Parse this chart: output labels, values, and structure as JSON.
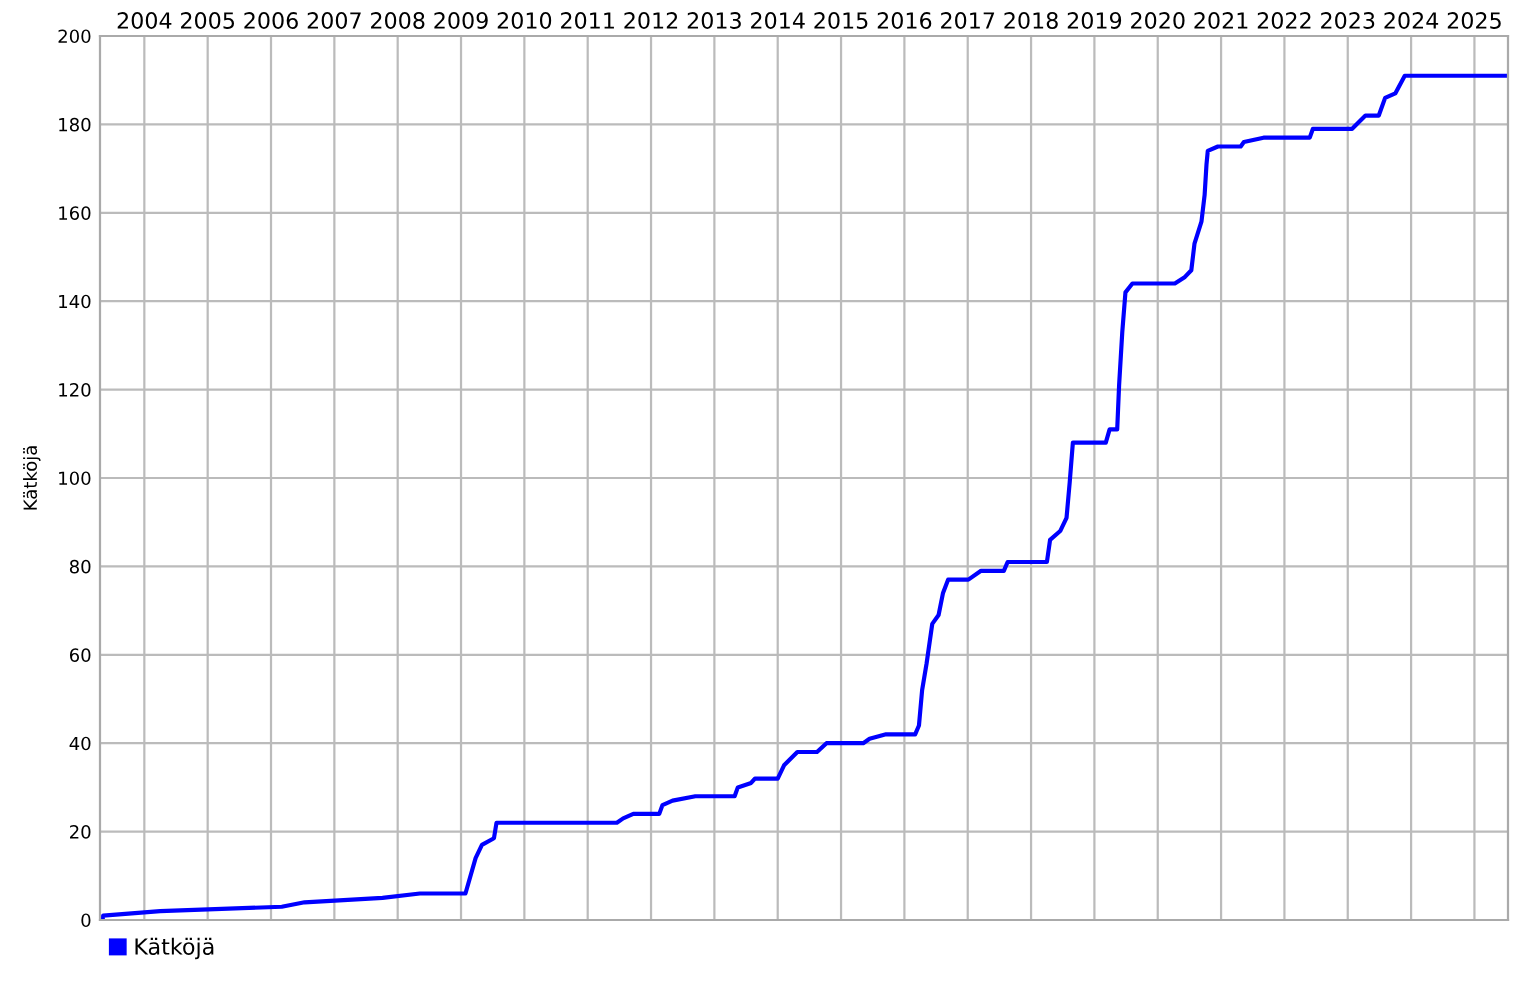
{
  "chart_data": {
    "type": "line",
    "ylabel": "Kätköjä",
    "x": [
      2003.34,
      2003.35,
      2004.25,
      2006.17,
      2006.53,
      2007.76,
      2008.35,
      2009.07,
      2009.23,
      2009.33,
      2009.52,
      2009.56,
      2011.46,
      2011.56,
      2011.72,
      2012.13,
      2012.18,
      2012.34,
      2012.7,
      2013.32,
      2013.37,
      2013.58,
      2013.64,
      2014.0,
      2014.1,
      2014.31,
      2014.62,
      2014.77,
      2015.35,
      2015.45,
      2015.71,
      2016.17,
      2016.23,
      2016.28,
      2016.35,
      2016.44,
      2016.54,
      2016.61,
      2016.69,
      2017.01,
      2017.21,
      2017.57,
      2017.63,
      2018.25,
      2018.3,
      2018.46,
      2018.56,
      2018.61,
      2018.66,
      2019.18,
      2019.24,
      2019.36,
      2019.39,
      2019.44,
      2019.49,
      2019.6,
      2020.27,
      2020.43,
      2020.53,
      2020.58,
      2020.69,
      2020.74,
      2020.77,
      2020.79,
      2020.95,
      2021.31,
      2021.36,
      2021.67,
      2022.4,
      2022.45,
      2023.07,
      2023.28,
      2023.49,
      2023.59,
      2023.75,
      2023.9,
      2025.51
    ],
    "series": [
      {
        "name": "Kätköjä",
        "color": "#0000ff",
        "values": [
          0,
          1,
          2,
          3,
          4,
          5,
          6,
          6,
          14,
          17,
          18.5,
          22,
          22,
          23,
          24,
          24,
          26,
          27,
          28,
          28,
          30,
          31,
          32,
          32,
          35,
          38,
          38,
          40,
          40,
          41,
          42,
          42,
          44,
          52,
          58,
          67,
          69,
          74,
          77,
          77,
          79,
          79,
          81,
          81,
          86,
          88,
          91,
          99,
          108,
          108,
          111,
          111,
          121,
          133,
          142,
          144,
          144,
          145.5,
          147,
          153,
          158,
          164,
          171,
          174,
          175,
          175,
          176,
          177,
          177,
          179,
          179,
          182,
          182,
          186,
          187,
          191,
          191
        ]
      }
    ],
    "xlim": [
      2003.3,
      2025.53
    ],
    "xticks": [
      2004,
      2005,
      2006,
      2007,
      2008,
      2009,
      2010,
      2011,
      2012,
      2013,
      2014,
      2015,
      2016,
      2017,
      2018,
      2019,
      2020,
      2021,
      2022,
      2023,
      2024,
      2025
    ],
    "ylim": [
      0,
      200
    ],
    "yticks": [
      0,
      20,
      40,
      60,
      80,
      100,
      120,
      140,
      160,
      180,
      200
    ],
    "grid": true,
    "legend": "bottom left",
    "marker": "none",
    "line_style": "solid"
  }
}
